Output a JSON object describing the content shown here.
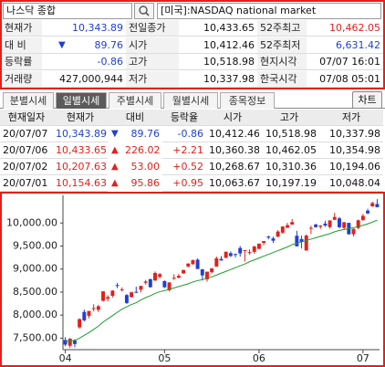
{
  "search": {
    "query": "나스닥 종합",
    "market": "[미국]:NASDAQ national market"
  },
  "summary": {
    "rows": [
      [
        {
          "label": "현재가",
          "value": "10,343.89",
          "tone": "down"
        },
        {
          "label": "전일종가",
          "value": "10,433.65"
        },
        {
          "label": "52주최고",
          "value": "10,462.05",
          "tone": "up"
        }
      ],
      [
        {
          "label": "대 비",
          "value": "89.76",
          "mark": "▼",
          "tone": "down"
        },
        {
          "label": "시가",
          "value": "10,412.46"
        },
        {
          "label": "52주최저",
          "value": "6,631.42",
          "tone": "down"
        }
      ],
      [
        {
          "label": "등락률",
          "value": "-0.86",
          "tone": "down"
        },
        {
          "label": "고가",
          "value": "10,518.98"
        },
        {
          "label": "현지시각",
          "value": "07/07 16:01"
        }
      ],
      [
        {
          "label": "거래량",
          "value": "427,000,944"
        },
        {
          "label": "저가",
          "value": "10,337.98"
        },
        {
          "label": "한국시각",
          "value": "07/08 05:01"
        }
      ]
    ]
  },
  "tabs": {
    "items": [
      "분별시세",
      "일별시세",
      "주별시세",
      "월별시세",
      "종목정보"
    ],
    "active": 1,
    "chart_button": "차트"
  },
  "daily": {
    "columns": [
      "현재일자",
      "현재가",
      "대비",
      "등락율",
      "시가",
      "고가",
      "저가"
    ],
    "rows": [
      [
        "20/07/07",
        "10,343.89",
        "▼",
        "89.76",
        "-0.86",
        "10,412.46",
        "10,518.98",
        "10,337.98"
      ],
      [
        "20/07/06",
        "10,433.65",
        "▲",
        "226.02",
        "+2.21",
        "10,360.38",
        "10,462.05",
        "10,354.98"
      ],
      [
        "20/07/02",
        "10,207.63",
        "▲",
        "53.00",
        "+0.52",
        "10,268.67",
        "10,310.36",
        "10,194.06"
      ],
      [
        "20/07/01",
        "10,154.63",
        "▲",
        "95.86",
        "+0.95",
        "10,063.67",
        "10,197.19",
        "10,048.04"
      ]
    ]
  },
  "chart_data": {
    "type": "candlestick",
    "categories": [
      "04",
      null,
      null,
      null,
      null,
      null,
      null,
      null,
      null,
      null,
      null,
      null,
      null,
      null,
      null,
      null,
      null,
      null,
      null,
      null,
      null,
      "05",
      null,
      null,
      null,
      null,
      null,
      null,
      null,
      null,
      null,
      null,
      null,
      null,
      null,
      null,
      null,
      null,
      null,
      null,
      null,
      "06",
      null,
      null,
      null,
      null,
      null,
      null,
      null,
      null,
      null,
      null,
      null,
      null,
      null,
      null,
      null,
      null,
      null,
      null,
      null,
      null,
      null,
      "07",
      null,
      null,
      null
    ],
    "open": [
      7459,
      7335,
      7446,
      7735,
      8069,
      7985,
      8150,
      8115,
      8312,
      8356,
      8419,
      8652,
      8558,
      8435,
      8390,
      8506,
      8552,
      8702,
      8782,
      8752,
      8829,
      8739,
      8540,
      8795,
      8813,
      8907,
      9057,
      9106,
      9203,
      8994,
      8777,
      8933,
      9054,
      9220,
      9243,
      9344,
      9326,
      9458,
      9411,
      9350,
      9374,
      9438,
      9568,
      9705,
      9665,
      9701,
      9791,
      9898,
      9966,
      9723,
      9652,
      9403,
      9876,
      9965,
      9919,
      9987,
      9913,
      10070,
      10101,
      9895,
      10003,
      9757,
      9892,
      10063.67,
      10268.67,
      10360.38,
      10412.46
    ],
    "high": [
      7522,
      7503,
      7476,
      7929,
      8121,
      8091,
      8236,
      8223,
      8523,
      8432,
      8539,
      8700,
      8603,
      8460,
      8510,
      8619,
      8637,
      8764,
      8788,
      8949,
      8916,
      8754,
      8711,
      8886,
      8894,
      8987,
      9122,
      9206,
      9231,
      9002,
      8944,
      9019,
      9273,
      9282,
      9384,
      9383,
      9336,
      9501,
      9412,
      9431,
      9505,
      9553,
      9609,
      9726,
      9704,
      9845,
      9924,
      10002,
      10086,
      9830,
      9728,
      9755,
      9942,
      9987,
      9955,
      10049,
      10057,
      10221,
      10131,
      10018,
      10004,
      9879,
      10075,
      10197.19,
      10310.36,
      10462.05,
      10518.98
    ],
    "low": [
      7325,
      7286,
      7301,
      7704,
      7862,
      7930,
      8082,
      8067,
      8294,
      8300,
      8384,
      8586,
      8512,
      8242,
      8381,
      8479,
      8493,
      8664,
      8594,
      8742,
      8801,
      8588,
      8515,
      8766,
      8799,
      8895,
      9036,
      9096,
      9001,
      8752,
      8726,
      8903,
      9052,
      9183,
      9238,
      9262,
      9255,
      9270,
      9162,
      9314,
      9331,
      9432,
      9519,
      9646,
      9567,
      9699,
      9765,
      9890,
      9964,
      9492,
      9446,
      9403,
      9761,
      9900,
      9874,
      9917,
      9880,
      10066,
      9884,
      9846,
      9743,
      9710,
      9866,
      10048.04,
      10194.06,
      10354.98,
      10337.98
    ],
    "close": [
      7360,
      7487,
      7373,
      7913,
      7887,
      8090,
      8153,
      8192,
      8515,
      8393,
      8532,
      8650,
      8560,
      8263,
      8495,
      8494,
      8634,
      8730,
      8607,
      8915,
      8889,
      8605,
      8710,
      8810,
      8854,
      8979,
      9121,
      9192,
      9002,
      8863,
      8943,
      9015,
      9234,
      9185,
      9375,
      9285,
      9325,
      9340,
      9412,
      9368,
      9490,
      9552,
      9609,
      9683,
      9616,
      9814,
      9924,
      9953,
      10020,
      9493,
      9589,
      9726,
      9895,
      9910,
      9943,
      9946,
      10056,
      10131,
      9910,
      10017,
      9757,
      9875,
      10059,
      10154.63,
      10207.63,
      10433.65,
      10343.89
    ],
    "average": [
      7420,
      7440,
      7450,
      7500,
      7560,
      7620,
      7690,
      7760,
      7850,
      7920,
      7990,
      8060,
      8130,
      8180,
      8230,
      8270,
      8330,
      8380,
      8420,
      8470,
      8510,
      8530,
      8560,
      8590,
      8620,
      8650,
      8680,
      8720,
      8750,
      8770,
      8800,
      8830,
      8870,
      8910,
      8950,
      8990,
      9030,
      9070,
      9110,
      9160,
      9200,
      9240,
      9280,
      9320,
      9360,
      9400,
      9440,
      9480,
      9530,
      9560,
      9590,
      9620,
      9650,
      9680,
      9710,
      9740,
      9770,
      9810,
      9840,
      9860,
      9880,
      9900,
      9920,
      9950,
      9980,
      10020,
      10060
    ],
    "up_color": "#e3201b",
    "down_color": "#1f3fd6",
    "average_color": "#1e9c2a",
    "ylim": [
      7250,
      10600
    ],
    "yticks": [
      {
        "value": 7500,
        "label": "7,500.00"
      },
      {
        "value": 8000,
        "label": "8,000.00"
      },
      {
        "value": 8500,
        "label": "8,500.00"
      },
      {
        "value": 9000,
        "label": "9,000.00"
      },
      {
        "value": 9500,
        "label": "9,500.00"
      },
      {
        "value": 10000,
        "label": "10,000.00"
      }
    ]
  }
}
